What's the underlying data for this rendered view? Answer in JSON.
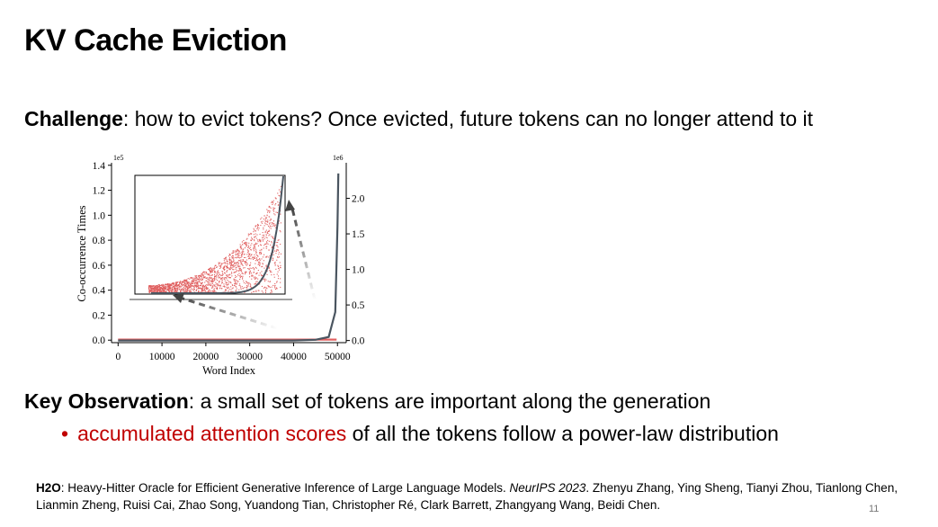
{
  "slide": {
    "title": "KV Cache Eviction",
    "challenge_label": "Challenge",
    "challenge_text": ": how to evict tokens?  Once evicted, future tokens can no longer attend to it",
    "key_obs_label": "Key Observation",
    "key_obs_text": ": a small set of tokens are important along the generation",
    "bullet_marker": "•",
    "bullet_highlight": "accumulated attention scores",
    "bullet_rest": " of all the tokens follow a power-law distribution",
    "ref_label": "H2O",
    "ref_text_1": ": Heavy-Hitter Oracle for Efficient Generative Inference of Large Language Models. ",
    "ref_venue": "NeurIPS 2023",
    "ref_text_2": ". Zhenyu Zhang, Ying Sheng, Tianyi Zhou, Tianlong Chen, Lianmin Zheng, Ruisi Cai, Zhao Song, Yuandong Tian, Christopher Ré, Clark Barrett, Zhangyang Wang, Beidi Chen.",
    "page_number": "11"
  },
  "colors": {
    "scatter": "#e06060",
    "curve": "#4a5560",
    "accent_red": "#c00000",
    "arrow": "#444444"
  },
  "chart_data": {
    "type": "scatter",
    "xlabel": "Word Index",
    "ylabel": "Co-occurrence Times",
    "left_axis_multiplier": "1e5",
    "right_axis_multiplier": "1e6",
    "x_ticks": [
      "0",
      "10000",
      "20000",
      "30000",
      "40000",
      "50000"
    ],
    "x_tick_values": [
      0,
      10000,
      20000,
      30000,
      40000,
      50000
    ],
    "xlim": [
      -1500,
      52000
    ],
    "y_left_ticks": [
      "0.0",
      "0.2",
      "0.4",
      "0.6",
      "0.8",
      "1.0",
      "1.2",
      "1.4"
    ],
    "y_left_tick_values": [
      0,
      0.2,
      0.4,
      0.6,
      0.8,
      1.0,
      1.2,
      1.4
    ],
    "ylim_left": [
      -0.02,
      1.42
    ],
    "y_right_ticks": [
      "0.0",
      "0.5",
      "1.0",
      "1.5",
      "2.0"
    ],
    "y_right_tick_values": [
      0,
      0.5,
      1.0,
      1.5,
      2.0
    ],
    "ylim_right": [
      -0.03,
      2.5
    ],
    "inset_description": "zoomed view of scatter with power-law curve",
    "curve_points_x": [
      0,
      10000,
      20000,
      30000,
      40000,
      45000,
      48000,
      49500,
      50000,
      50200
    ],
    "curve_points_y_right": [
      0.0,
      0.0,
      0.0,
      0.0,
      0.0,
      0.01,
      0.05,
      0.4,
      1.6,
      2.35
    ],
    "grid": false,
    "legend": "none"
  }
}
